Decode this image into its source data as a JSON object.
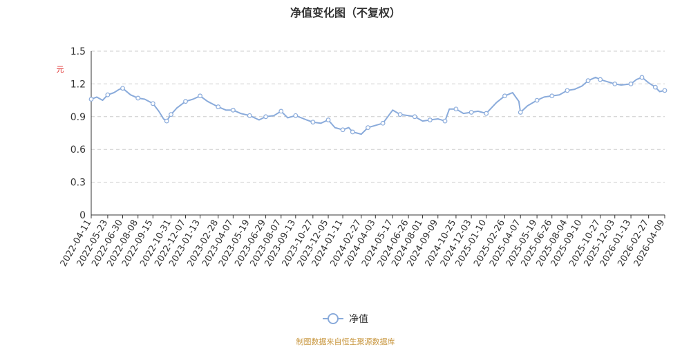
{
  "title": "净值变化图（不复权）",
  "unit": "元",
  "source": "制图数据来自恒生聚源数据库",
  "colors": {
    "line": "#8aabdb",
    "grid": "#cccccc",
    "axis": "#333333",
    "unit": "#e03030",
    "source": "#c8963e"
  },
  "chart_data": {
    "type": "line",
    "title": "净值变化图（不复权）",
    "ylabel": "元",
    "ylim": [
      0,
      1.5
    ],
    "y_ticks": [
      "0",
      "0.3",
      "0.6",
      "0.9",
      "1.2",
      "1.5"
    ],
    "grid": true,
    "legend_position": "bottom-center",
    "x_ticks": [
      "2022-04-11",
      "2022-05-23",
      "2022-06-30",
      "2022-08-08",
      "2022-09-15",
      "2022-10-31",
      "2022-12-07",
      "2023-01-13",
      "2023-02-28",
      "2023-04-07",
      "2023-05-19",
      "2023-06-29",
      "2023-08-07",
      "2023-09-13",
      "2023-10-27",
      "2023-12-05",
      "2024-01-11",
      "2024-02-27",
      "2024-04-03",
      "2024-05-17",
      "2024-06-26",
      "2024-08-01",
      "2024-09-09",
      "2024-10-25",
      "2024-12-03",
      "2025-01-10",
      "2025-02-26",
      "2025-04-07",
      "2025-05-19",
      "2025-06-26",
      "2025-08-04",
      "2025-09-10",
      "2025-10-27",
      "2025-12-03",
      "2026-01-13",
      "2026-02-27",
      "2026-04-09"
    ],
    "series": [
      {
        "name": "净值",
        "x": [
          "2022-04-11",
          "2022-04-25",
          "2022-05-10",
          "2022-05-23",
          "2022-06-08",
          "2022-06-21",
          "2022-06-30",
          "2022-07-20",
          "2022-08-08",
          "2022-08-25",
          "2022-09-15",
          "2022-09-30",
          "2022-10-12",
          "2022-10-20",
          "2022-10-31",
          "2022-11-15",
          "2022-12-07",
          "2022-12-26",
          "2023-01-13",
          "2023-02-01",
          "2023-02-28",
          "2023-03-20",
          "2023-04-07",
          "2023-04-26",
          "2023-05-19",
          "2023-06-12",
          "2023-06-29",
          "2023-07-20",
          "2023-08-07",
          "2023-08-24",
          "2023-09-13",
          "2023-10-11",
          "2023-10-27",
          "2023-11-16",
          "2023-12-05",
          "2023-12-22",
          "2024-01-11",
          "2024-01-26",
          "2024-02-05",
          "2024-02-27",
          "2024-03-15",
          "2024-04-03",
          "2024-04-22",
          "2024-05-17",
          "2024-06-05",
          "2024-06-26",
          "2024-07-12",
          "2024-08-01",
          "2024-08-20",
          "2024-09-09",
          "2024-09-27",
          "2024-10-08",
          "2024-10-25",
          "2024-11-13",
          "2024-12-03",
          "2024-12-20",
          "2025-01-10",
          "2025-02-05",
          "2025-02-26",
          "2025-03-18",
          "2025-04-03",
          "2025-04-07",
          "2025-04-25",
          "2025-05-19",
          "2025-06-06",
          "2025-06-26",
          "2025-07-15",
          "2025-08-04",
          "2025-08-22",
          "2025-09-10",
          "2025-09-26",
          "2025-10-15",
          "2025-10-27",
          "2025-11-14",
          "2025-12-03",
          "2025-12-19",
          "2026-01-13",
          "2026-01-27",
          "2026-02-10",
          "2026-02-27",
          "2026-03-16",
          "2026-03-27",
          "2026-04-09"
        ],
        "values": [
          1.06,
          1.08,
          1.05,
          1.1,
          1.12,
          1.15,
          1.16,
          1.1,
          1.07,
          1.06,
          1.02,
          0.95,
          0.88,
          0.86,
          0.92,
          0.98,
          1.04,
          1.06,
          1.09,
          1.04,
          0.99,
          0.96,
          0.96,
          0.93,
          0.91,
          0.87,
          0.9,
          0.91,
          0.95,
          0.89,
          0.91,
          0.87,
          0.85,
          0.84,
          0.87,
          0.8,
          0.78,
          0.8,
          0.76,
          0.74,
          0.8,
          0.82,
          0.84,
          0.96,
          0.92,
          0.91,
          0.9,
          0.86,
          0.87,
          0.88,
          0.86,
          0.97,
          0.97,
          0.93,
          0.94,
          0.95,
          0.93,
          1.03,
          1.09,
          1.12,
          1.04,
          0.94,
          1.0,
          1.05,
          1.08,
          1.09,
          1.1,
          1.14,
          1.15,
          1.18,
          1.23,
          1.26,
          1.24,
          1.22,
          1.2,
          1.19,
          1.2,
          1.24,
          1.26,
          1.21,
          1.17,
          1.13,
          1.14
        ]
      }
    ],
    "marker_series_index": [
      0,
      3,
      6,
      8,
      10,
      13,
      14,
      16,
      18,
      20,
      22,
      24,
      26,
      28,
      30,
      32,
      34,
      36,
      38,
      40,
      42,
      44,
      46,
      48,
      50,
      52,
      54,
      56,
      58,
      61,
      63,
      65,
      67,
      70,
      72,
      74,
      76,
      78,
      80,
      82
    ]
  }
}
